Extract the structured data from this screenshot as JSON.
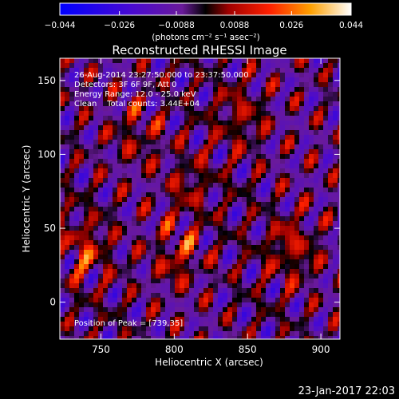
{
  "chart_data": {
    "type": "heatmap",
    "title": "Reconstructed RHESSI Image",
    "xlabel": "Heliocentric X (arcsec)",
    "ylabel": "Heliocentric Y (arcsec)",
    "xlim": [
      722,
      913
    ],
    "ylim": [
      -25,
      165
    ],
    "xticks": [
      750,
      800,
      850,
      900
    ],
    "xtick_labels": [
      "750",
      "800",
      "850",
      "900"
    ],
    "yticks": [
      0,
      50,
      100,
      150
    ],
    "ytick_labels": [
      "0",
      "50",
      "100",
      "150"
    ],
    "colorbar": {
      "min": -0.044,
      "max": 0.044,
      "ticks": [
        -0.044,
        -0.026,
        -0.0088,
        0.0088,
        0.026,
        0.044
      ],
      "tick_labels": [
        "−0.044",
        "−0.026",
        "−0.0088",
        "0.0088",
        "0.026",
        "0.044"
      ],
      "unit_label": "(photons cm⁻² s⁻¹ asec⁻²)"
    },
    "peak": {
      "x": 739,
      "y": 35
    },
    "annotations": [
      "26-Aug-2014 23:27:50.000 to 23:37:50.000",
      "Detectors: 3F 6F 9F, Att 0",
      "Energy Range: 12.0 - 25.0 keV",
      "Clean    Total counts: 3.44E+04"
    ],
    "peak_label": "Position of Peak = [739,35]"
  },
  "footer": {
    "timestamp": "23-Jan-2017 22:03"
  }
}
